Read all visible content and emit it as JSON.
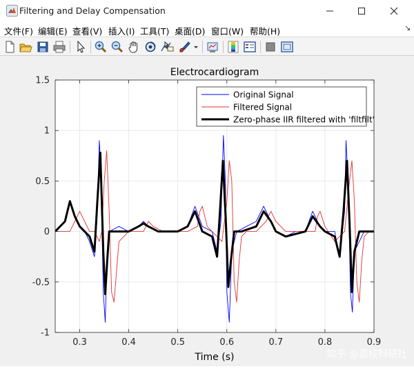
{
  "window": {
    "title": "Filtering and Delay Compensation"
  },
  "menu": [
    {
      "label": "文件(F)"
    },
    {
      "label": "编辑(E)"
    },
    {
      "label": "查看(V)"
    },
    {
      "label": "插入(I)"
    },
    {
      "label": "工具(T)"
    },
    {
      "label": "桌面(D)"
    },
    {
      "label": "窗口(W)"
    },
    {
      "label": "帮助(H)"
    }
  ],
  "toolbar": {
    "icons": [
      "new-file-icon",
      "open-file-icon",
      "save-icon",
      "print-icon",
      "pointer-icon",
      "zoom-in-icon",
      "zoom-out-icon",
      "pan-icon",
      "rotate-3d-icon",
      "data-cursor-icon",
      "brush-icon",
      "link-plot-icon",
      "colorbar-icon",
      "legend-icon",
      "hide-plot-tools-icon",
      "show-plot-tools-icon"
    ]
  },
  "chart_data": {
    "type": "line",
    "title": "Electrocardiogram",
    "xlabel": "Time (s)",
    "ylabel": "",
    "xlim": [
      0.25,
      0.9
    ],
    "ylim": [
      -1,
      1.5
    ],
    "xticks": [
      "0.3",
      "0.4",
      "0.5",
      "0.6",
      "0.7",
      "0.8",
      "0.9"
    ],
    "yticks": [
      "-1",
      "-0.5",
      "0",
      "0.5",
      "1",
      "1.5"
    ],
    "grid": true,
    "legend_position": "top-right",
    "series": [
      {
        "name": "Original Signal",
        "color": "#0000ff",
        "x": [
          0.25,
          0.27,
          0.28,
          0.29,
          0.3,
          0.31,
          0.32,
          0.33,
          0.335,
          0.34,
          0.343,
          0.348,
          0.352,
          0.356,
          0.36,
          0.38,
          0.4,
          0.42,
          0.43,
          0.44,
          0.46,
          0.48,
          0.5,
          0.52,
          0.535,
          0.55,
          0.57,
          0.58,
          0.588,
          0.593,
          0.597,
          0.6,
          0.605,
          0.61,
          0.62,
          0.64,
          0.66,
          0.675,
          0.69,
          0.7,
          0.72,
          0.74,
          0.76,
          0.775,
          0.79,
          0.8,
          0.81,
          0.82,
          0.83,
          0.84,
          0.843,
          0.848,
          0.852,
          0.856,
          0.86,
          0.88,
          0.9
        ],
        "y": [
          0.0,
          0.1,
          0.3,
          0.15,
          0.05,
          0.0,
          -0.1,
          -0.25,
          0.1,
          0.9,
          0.6,
          -0.6,
          -0.9,
          -0.2,
          0.0,
          0.05,
          0.0,
          0.05,
          0.1,
          0.05,
          0.0,
          0.0,
          0.0,
          0.05,
          0.25,
          0.05,
          0.0,
          -0.2,
          0.1,
          0.95,
          0.5,
          -0.6,
          -0.9,
          -0.2,
          0.0,
          0.05,
          0.1,
          0.25,
          0.1,
          0.0,
          -0.05,
          0.0,
          0.0,
          0.2,
          0.05,
          0.0,
          0.0,
          0.0,
          -0.25,
          0.2,
          0.9,
          0.4,
          -0.6,
          -0.8,
          -0.2,
          0.0,
          0.0
        ]
      },
      {
        "name": "Filtered Signal",
        "color": "#e03030",
        "x": [
          0.25,
          0.28,
          0.29,
          0.3,
          0.31,
          0.32,
          0.33,
          0.34,
          0.345,
          0.35,
          0.355,
          0.36,
          0.365,
          0.37,
          0.38,
          0.4,
          0.43,
          0.44,
          0.45,
          0.47,
          0.5,
          0.52,
          0.54,
          0.545,
          0.55,
          0.56,
          0.57,
          0.59,
          0.6,
          0.605,
          0.61,
          0.615,
          0.62,
          0.625,
          0.63,
          0.64,
          0.66,
          0.68,
          0.69,
          0.7,
          0.72,
          0.75,
          0.78,
          0.785,
          0.79,
          0.8,
          0.82,
          0.84,
          0.85,
          0.855,
          0.86,
          0.865,
          0.87,
          0.875,
          0.88,
          0.89,
          0.9
        ],
        "y": [
          0.0,
          0.0,
          0.1,
          0.2,
          0.1,
          0.0,
          0.0,
          -0.1,
          0.0,
          0.5,
          0.8,
          0.2,
          -0.6,
          -0.7,
          -0.1,
          0.0,
          0.0,
          0.1,
          0.05,
          0.0,
          0.0,
          0.0,
          0.05,
          0.2,
          0.25,
          0.05,
          0.0,
          -0.1,
          0.3,
          0.7,
          0.5,
          -0.5,
          -0.7,
          -0.3,
          -0.05,
          0.0,
          0.0,
          0.1,
          0.2,
          0.1,
          0.0,
          0.0,
          0.0,
          0.15,
          0.2,
          0.05,
          -0.1,
          0.0,
          0.5,
          0.7,
          0.3,
          -0.5,
          -0.7,
          -0.3,
          -0.05,
          0.0,
          0.0
        ]
      },
      {
        "name": "Zero-phase IIR filtered with 'filtfilt'",
        "color": "#000000",
        "x": [
          0.25,
          0.27,
          0.28,
          0.29,
          0.3,
          0.31,
          0.32,
          0.33,
          0.336,
          0.342,
          0.348,
          0.352,
          0.356,
          0.36,
          0.37,
          0.4,
          0.42,
          0.43,
          0.44,
          0.46,
          0.5,
          0.52,
          0.535,
          0.55,
          0.57,
          0.58,
          0.586,
          0.592,
          0.598,
          0.603,
          0.608,
          0.615,
          0.63,
          0.66,
          0.675,
          0.69,
          0.7,
          0.72,
          0.76,
          0.775,
          0.79,
          0.8,
          0.82,
          0.83,
          0.838,
          0.845,
          0.85,
          0.855,
          0.86,
          0.87,
          0.9
        ],
        "y": [
          0.0,
          0.1,
          0.3,
          0.15,
          0.05,
          0.0,
          -0.05,
          -0.2,
          0.3,
          0.78,
          -0.2,
          -0.62,
          -0.3,
          0.0,
          0.0,
          0.0,
          0.05,
          0.08,
          0.05,
          0.0,
          0.0,
          0.05,
          0.2,
          0.0,
          -0.05,
          -0.25,
          0.2,
          0.7,
          0.1,
          -0.55,
          -0.3,
          0.0,
          0.0,
          0.05,
          0.2,
          0.1,
          0.0,
          -0.05,
          0.0,
          0.15,
          0.05,
          0.0,
          -0.05,
          -0.25,
          0.2,
          0.7,
          0.1,
          -0.6,
          -0.2,
          0.0,
          0.0
        ]
      }
    ]
  },
  "watermark": "知乎 @荔枝科研社"
}
